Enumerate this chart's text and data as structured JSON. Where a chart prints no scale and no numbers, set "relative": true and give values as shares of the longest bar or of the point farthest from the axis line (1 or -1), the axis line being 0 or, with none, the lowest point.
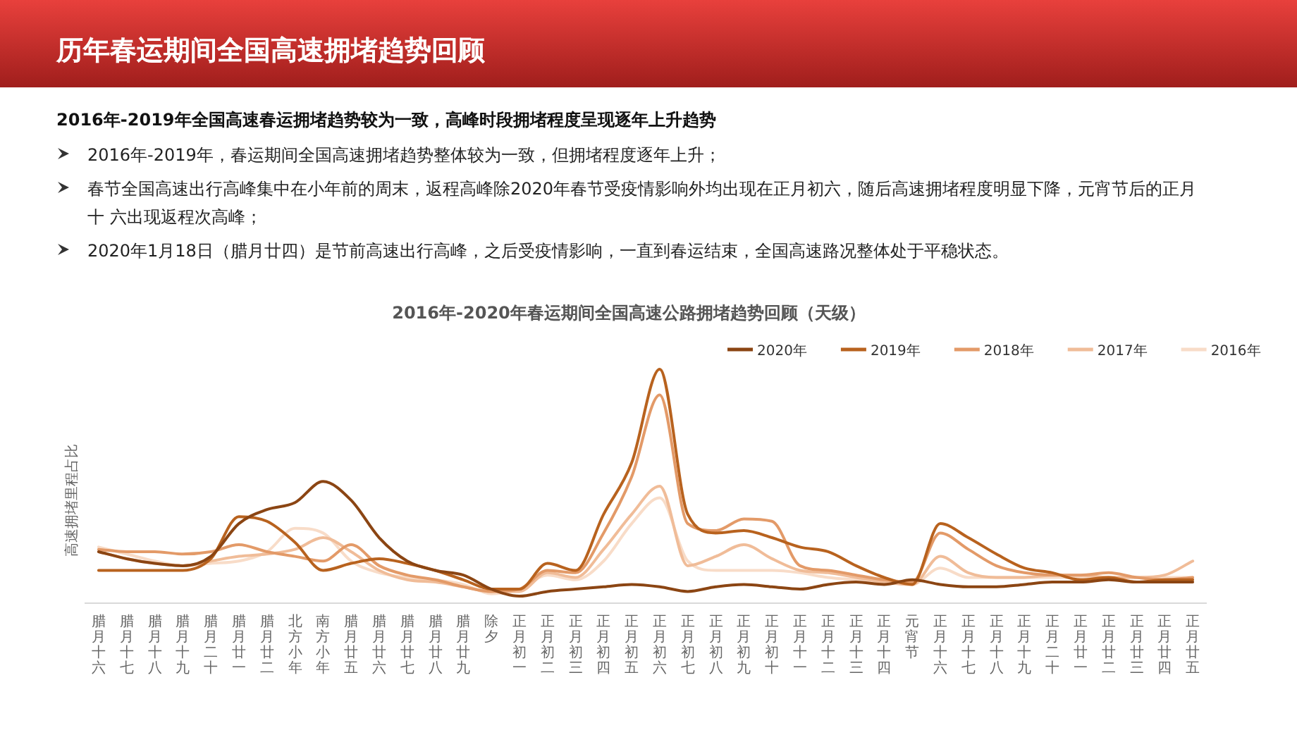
{
  "chart_data": {
    "type": "line",
    "title": "2016年-2020年春运期间全国高速公路拥堵趋势回顾（天级）",
    "ylabel": "高速拥堵里程占比",
    "relative": true,
    "legend": "top right",
    "annotations": [
      "历年春运期间全国高速拥堵趋势回顾",
      "2016年-2019年全国高速春运拥堵趋势较为一致，高峰时段拥堵程度呈现逐年上升趋势",
      "2016年-2019年，春运期间全国高速拥堵趋势整体较为一致，但拥堵程度逐年上升；",
      "春节全国高速出行高峰集中在小年前的周末，返程高峰除2020年春节受疫情影响外均出现在正月初六，随后高速拥堵程度明显下降，元宵节后的正月十 六出现返程次高峰；",
      "2020年1月18日（腊月廿四）是节前高速出行高峰，之后受疫情影响，一直到春运结束，全国高速路况整体处于平稳状态。"
    ],
    "categories": [
      "腊月十六",
      "腊月十七",
      "腊月十八",
      "腊月十九",
      "腊月二十",
      "腊月廿一",
      "腊月廿二",
      "北方小年",
      "南方小年",
      "腊月廿五",
      "腊月廿六",
      "腊月廿七",
      "腊月廿八",
      "腊月廿九",
      "除夕",
      "正月初一",
      "正月初二",
      "正月初三",
      "正月初四",
      "正月初五",
      "正月初六",
      "正月初七",
      "正月初八",
      "正月初九",
      "正月初十",
      "正月十一",
      "正月十二",
      "正月十三",
      "正月十四",
      "元宵节",
      "正月十六",
      "正月十七",
      "正月十八",
      "正月十九",
      "正月二十",
      "正月廿一",
      "正月廿二",
      "正月廿三",
      "正月廿四",
      "正月廿五"
    ],
    "series": [
      {
        "name": "2020年",
        "color": "#8b4513",
        "values": [
          0.22,
          0.19,
          0.17,
          0.16,
          0.2,
          0.34,
          0.4,
          0.43,
          0.52,
          0.44,
          0.28,
          0.18,
          0.14,
          0.12,
          0.06,
          0.03,
          0.05,
          0.06,
          0.07,
          0.08,
          0.07,
          0.05,
          0.07,
          0.08,
          0.07,
          0.06,
          0.08,
          0.09,
          0.08,
          0.1,
          0.08,
          0.07,
          0.07,
          0.08,
          0.09,
          0.09,
          0.1,
          0.09,
          0.09,
          0.09
        ]
      },
      {
        "name": "2019年",
        "color": "#b8621e",
        "values": [
          0.14,
          0.14,
          0.14,
          0.14,
          0.19,
          0.37,
          0.35,
          0.26,
          0.14,
          0.17,
          0.19,
          0.17,
          0.14,
          0.1,
          0.06,
          0.06,
          0.17,
          0.14,
          0.38,
          0.6,
          1,
          0.38,
          0.3,
          0.31,
          0.28,
          0.24,
          0.22,
          0.16,
          0.11,
          0.08,
          0.34,
          0.28,
          0.21,
          0.15,
          0.13,
          0.1,
          0.11,
          0.09,
          0.1,
          0.1
        ]
      },
      {
        "name": "2018年",
        "color": "#e39a68",
        "values": [
          0.23,
          0.22,
          0.22,
          0.21,
          0.22,
          0.25,
          0.22,
          0.2,
          0.18,
          0.25,
          0.16,
          0.12,
          0.1,
          0.07,
          0.05,
          0.06,
          0.14,
          0.13,
          0.3,
          0.54,
          0.89,
          0.34,
          0.31,
          0.36,
          0.35,
          0.16,
          0.14,
          0.12,
          0.1,
          0.09,
          0.3,
          0.23,
          0.16,
          0.13,
          0.12,
          0.12,
          0.13,
          0.11,
          0.1,
          0.11
        ]
      },
      {
        "name": "2017年",
        "color": "#f0bc98",
        "values": [
          0.22,
          0.19,
          0.17,
          0.16,
          0.18,
          0.2,
          0.21,
          0.23,
          0.28,
          0.22,
          0.14,
          0.1,
          0.09,
          0.07,
          0.05,
          0.05,
          0.13,
          0.11,
          0.23,
          0.38,
          0.5,
          0.16,
          0.2,
          0.25,
          0.19,
          0.14,
          0.13,
          0.11,
          0.09,
          0.08,
          0.2,
          0.13,
          0.11,
          0.11,
          0.12,
          0.12,
          0.11,
          0.11,
          0.12,
          0.18
        ]
      },
      {
        "name": "2016年",
        "color": "#f8dcc8",
        "values": [
          0.24,
          0.21,
          0.18,
          0.16,
          0.17,
          0.18,
          0.22,
          0.32,
          0.3,
          0.18,
          0.13,
          0.11,
          0.1,
          0.08,
          0.04,
          0.06,
          0.12,
          0.1,
          0.18,
          0.34,
          0.45,
          0.18,
          0.14,
          0.14,
          0.14,
          0.13,
          0.11,
          0.1,
          0.09,
          0.08,
          0.15,
          0.11,
          0.11,
          0.11,
          0.11,
          0.11,
          0.11,
          0.11,
          0.11,
          0.11
        ]
      }
    ]
  }
}
